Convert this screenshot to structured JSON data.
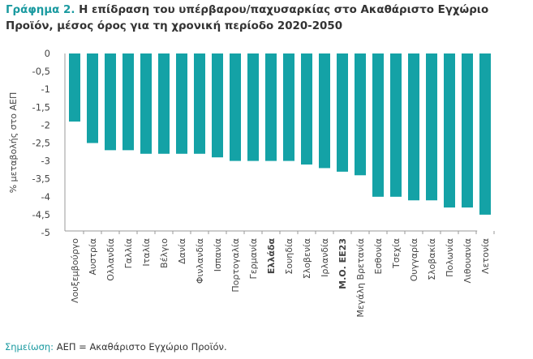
{
  "title_lead": "Γράφημα 2.",
  "title_text": " Η επίδραση του υπέρβαρου/παχυσαρκίας στο Ακαθάριστο Εγχώριο Προϊόν, μέσος όρος για τη χρονική περίοδο 2020-2050",
  "note_lead": "Σημείωση:",
  "note_text": " ΑΕΠ = Ακαθάριστο Εγχώριο Προϊόν.",
  "colors": {
    "bar": "#14a2a6",
    "accent": "#1a9aa0"
  },
  "chart_data": {
    "type": "bar",
    "title": "Η επίδραση του υπέρβαρου/παχυσαρκίας στο Ακαθάριστο Εγχώριο Προϊόν, μέσος όρος για τη χρονική περίοδο 2020-2050",
    "xlabel": "",
    "ylabel": "% μεταβολής στο ΑΕΠ",
    "ylim": [
      -5,
      0
    ],
    "yticks": [
      "0",
      "-0,5",
      "-1",
      "-1,5",
      "-2",
      "-2,5",
      "-3",
      "-3,5",
      "-4",
      "-4,5",
      "-5"
    ],
    "categories": [
      "Λουξεμβούργο",
      "Αυστρία",
      "Ολλανδία",
      "Γαλλία",
      "Ιταλία",
      "Βέλγιο",
      "Δανία",
      "Φινλανδία",
      "Ισπανία",
      "Πορτογαλία",
      "Γερμανία",
      "Ελλάδα",
      "Σουηδία",
      "Σλοβενία",
      "Ιρλανδία",
      "Μ.Ο. ΕΕ23",
      "Μεγάλη Βρετανία",
      "Εσθονία",
      "Τσεχία",
      "Ουγγαρία",
      "Σλοβακία",
      "Πολωνία",
      "Λιθουανία",
      "Λετονία"
    ],
    "bold_categories": [
      "Ελλάδα",
      "Μ.Ο. ΕΕ23"
    ],
    "values": [
      -1.9,
      -2.5,
      -2.7,
      -2.7,
      -2.8,
      -2.8,
      -2.8,
      -2.8,
      -2.9,
      -3.0,
      -3.0,
      -3.0,
      -3.0,
      -3.1,
      -3.2,
      -3.3,
      -3.4,
      -4.0,
      -4.0,
      -4.1,
      -4.1,
      -4.3,
      -4.3,
      -4.5
    ],
    "grid": false,
    "legend": "none"
  }
}
